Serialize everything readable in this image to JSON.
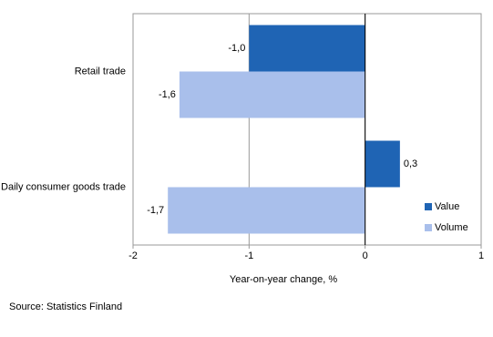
{
  "chart_data": {
    "type": "bar",
    "orientation": "horizontal",
    "categories": [
      "Retail trade",
      "Daily consumer goods trade"
    ],
    "series": [
      {
        "name": "Value",
        "color": "#1f64b4",
        "values": [
          -1.0,
          0.3
        ],
        "value_labels": [
          "-1,0",
          "0,3"
        ]
      },
      {
        "name": "Volume",
        "color": "#a9bfeb",
        "values": [
          -1.6,
          -1.7
        ],
        "value_labels": [
          "-1,6",
          "-1,7"
        ]
      }
    ],
    "xlim": [
      -2,
      1
    ],
    "xticks": [
      -2,
      -1,
      0,
      1
    ],
    "grid": true,
    "x_label": "Year-on-year change, %",
    "legend": "right",
    "source": "Source: Statistics Finland"
  }
}
